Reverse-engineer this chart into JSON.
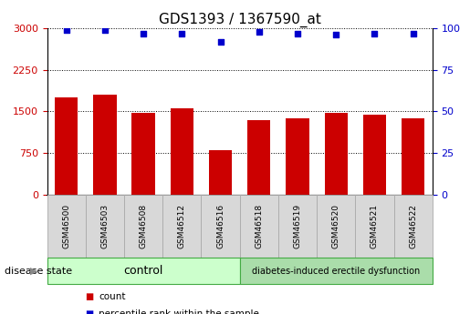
{
  "title": "GDS1393 / 1367590_at",
  "samples": [
    "GSM46500",
    "GSM46503",
    "GSM46508",
    "GSM46512",
    "GSM46516",
    "GSM46518",
    "GSM46519",
    "GSM46520",
    "GSM46521",
    "GSM46522"
  ],
  "counts": [
    1750,
    1800,
    1480,
    1550,
    800,
    1350,
    1370,
    1480,
    1450,
    1380
  ],
  "percentiles": [
    99,
    99,
    97,
    97,
    92,
    98,
    97,
    96,
    97,
    97
  ],
  "groups": [
    "control",
    "control",
    "control",
    "control",
    "control",
    "diabetes-induced erectile dysfunction",
    "diabetes-induced erectile dysfunction",
    "diabetes-induced erectile dysfunction",
    "diabetes-induced erectile dysfunction",
    "diabetes-induced erectile dysfunction"
  ],
  "group_colors": {
    "control": "#ccffcc",
    "diabetes-induced erectile dysfunction": "#aaddaa"
  },
  "bar_color": "#cc0000",
  "dot_color": "#0000cc",
  "ylim_left": [
    0,
    3000
  ],
  "ylim_right": [
    0,
    100
  ],
  "yticks_left": [
    0,
    750,
    1500,
    2250,
    3000
  ],
  "yticks_right": [
    0,
    25,
    50,
    75,
    100
  ],
  "tick_color_left": "#cc0000",
  "tick_color_right": "#0000cc",
  "background_color": "#ffffff",
  "bar_width": 0.6,
  "legend_label_count": "count",
  "legend_label_percentile": "percentile rank within the sample",
  "disease_state_label": "disease state",
  "ticklabel_box_color": "#d8d8d8",
  "ticklabel_box_edgecolor": "#aaaaaa",
  "title_fontsize": 11,
  "tick_fontsize": 8,
  "bar_label_fontsize": 7.5,
  "group_label_fontsize_control": 9,
  "group_label_fontsize_diabetes": 7,
  "n_control": 5,
  "n_total": 10
}
